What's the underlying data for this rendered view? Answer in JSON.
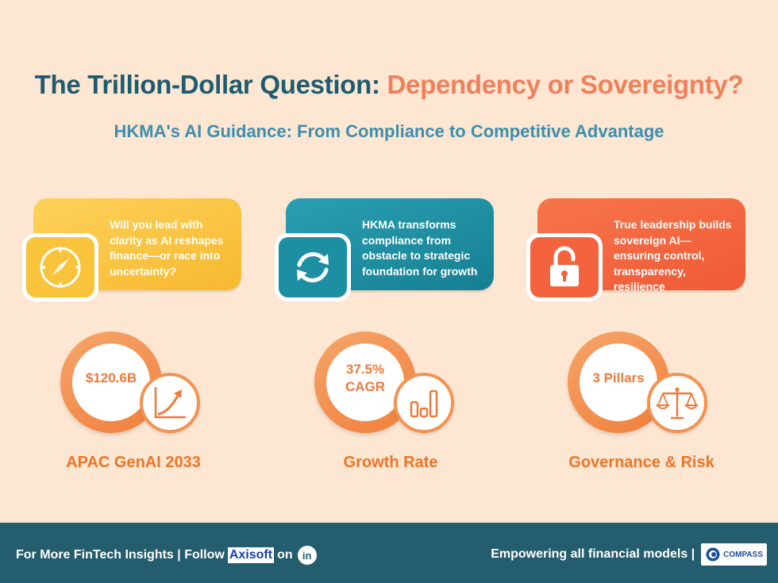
{
  "header": {
    "title_main": "The Trillion-Dollar Question: ",
    "title_accent": "Dependency or Sovereignty?",
    "subtitle": "HKMA's AI Guidance: From Compliance to Competitive Advantage"
  },
  "cards": [
    {
      "icon": "compass-icon",
      "text": "Will you lead with clarity as AI reshapes finance—or race into uncertainty?",
      "color": "#f9c33c"
    },
    {
      "icon": "refresh-arrows-icon",
      "text": "HKMA transforms compliance from obstacle to strategic foundation for growth",
      "color": "#1c8fa3"
    },
    {
      "icon": "unlocked-padlock-icon",
      "text": "True leadership builds sovereign AI—ensuring control, transparency, resilience",
      "color": "#f3643e"
    }
  ],
  "stats": [
    {
      "value": "$120.6B",
      "label": "APAC GenAI 2033",
      "icon": "trend-up-chart-icon"
    },
    {
      "value_line1": "37.5%",
      "value_line2": "CAGR",
      "label": "Growth Rate",
      "icon": "bar-chart-icon"
    },
    {
      "value": "3 Pillars",
      "label": "Governance & Risk",
      "icon": "scales-icon"
    }
  ],
  "footer": {
    "left_text": "For More FinTech Insights | Follow",
    "brand": "Axisoft",
    "on_text": "on",
    "linkedin": "in",
    "right_text": "Empowering all financial models |",
    "logo_text": "COMPASS"
  },
  "colors": {
    "background": "#fde6d2",
    "title": "#1f5b6e",
    "accent": "#f0805c",
    "subtitle": "#3d8fad",
    "stat_orange": "#ee7425",
    "footer": "#245d6e"
  }
}
